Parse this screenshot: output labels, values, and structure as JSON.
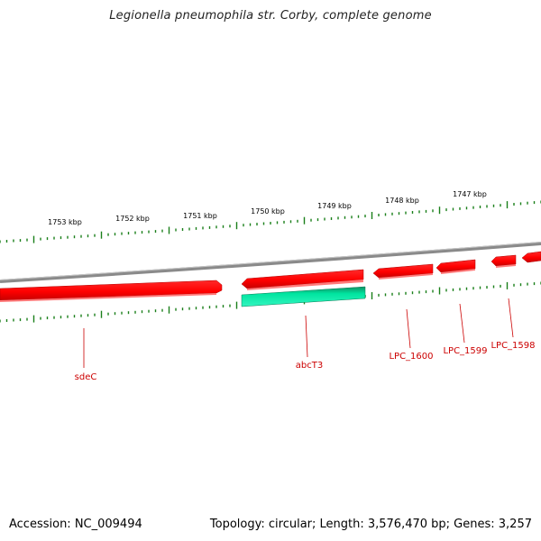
{
  "title": "Legionella pneumophila str. Corby, complete genome",
  "footer": {
    "accession": "Accession: NC_009494",
    "summary": "Topology: circular; Length: 3,576,470 bp; Genes: 3,257"
  },
  "colors": {
    "backbone": "#888888",
    "forward_gene": "#ff0000",
    "reverse_gene": "#00e5a0",
    "tick": "#1a7f1a",
    "gene_label": "#cc0000",
    "kbp_label": "#000000"
  },
  "kbp_labels": [
    "1753 kbp",
    "1752 kbp",
    "1751 kbp",
    "1750 kbp",
    "1749 kbp",
    "1748 kbp",
    "1747 kbp"
  ],
  "genes": [
    {
      "label": "sdeC",
      "strand": "forward"
    },
    {
      "label": "abcT3",
      "strand": "reverse"
    },
    {
      "label": "LPC_1600",
      "strand": "forward"
    },
    {
      "label": "LPC_1599",
      "strand": "forward"
    },
    {
      "label": "LPC_1598",
      "strand": "forward"
    },
    {
      "label": "",
      "strand": "forward"
    }
  ]
}
